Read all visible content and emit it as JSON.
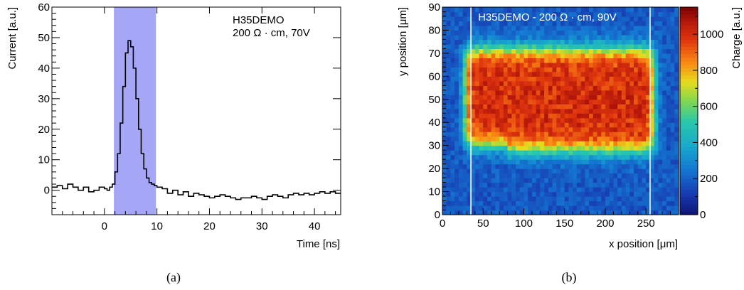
{
  "chart_data": [
    {
      "type": "line",
      "title": "",
      "xlabel": "Time [ns]",
      "ylabel": "Current [a.u.]",
      "xlim": [
        -10,
        45
      ],
      "ylim": [
        -8,
        60
      ],
      "xticks": [
        0,
        10,
        20,
        30,
        40
      ],
      "yticks": [
        0,
        10,
        20,
        30,
        40,
        50,
        60
      ],
      "x_tick_labels": [
        "0",
        "10",
        "20",
        "30",
        "40"
      ],
      "y_tick_labels": [
        "0",
        "10",
        "20",
        "30",
        "40",
        "50",
        "60"
      ],
      "annotations": [
        "H35DEMO",
        "200 Ω · cm, 70V"
      ],
      "shaded_region": {
        "x": [
          1.8,
          9.8
        ],
        "color": "#a6a6f7"
      },
      "line_color": "#000000",
      "series": [
        {
          "x": [
            -10,
            -9,
            -8,
            -7,
            -6,
            -5,
            -4,
            -3,
            -2,
            -1,
            0,
            0.5,
            1,
            1.5,
            2,
            2.5,
            3,
            3.5,
            4,
            4.5,
            5,
            5.5,
            6,
            6.5,
            7,
            7.5,
            8,
            8.5,
            9,
            9.5,
            10,
            11,
            12,
            13,
            14,
            15,
            16,
            17,
            18,
            19,
            20,
            21,
            22,
            23,
            24,
            25,
            26,
            27,
            28,
            29,
            30,
            31,
            32,
            33,
            34,
            35,
            36,
            37,
            38,
            39,
            40,
            41,
            42,
            43,
            44,
            45
          ],
          "values": [
            1,
            1.5,
            0.5,
            2,
            1,
            0,
            1,
            -0.5,
            0,
            1,
            0.5,
            0,
            1,
            2,
            6,
            12,
            22,
            34,
            45,
            49,
            47,
            40,
            30,
            20,
            12,
            7,
            4,
            2.5,
            2,
            1.5,
            1,
            0.5,
            -1,
            0,
            -1.5,
            -0.5,
            -2,
            -1,
            -1.5,
            -2,
            -2.5,
            -2,
            -1.5,
            -2,
            -2.5,
            -3,
            -2.5,
            -2.5,
            -2,
            -2.5,
            -3,
            -2,
            -1.5,
            -2,
            -2.5,
            -1.5,
            -1,
            -1.5,
            -1,
            -1.5,
            -1,
            -0.5,
            -1,
            -0.5,
            -1,
            -1
          ]
        }
      ]
    },
    {
      "type": "heatmap",
      "title": "",
      "xlabel": "x position [μm]",
      "ylabel": "y position [μm]",
      "zlabel": "Charge [a.u.]",
      "xlim": [
        0,
        290
      ],
      "ylim": [
        0,
        90
      ],
      "zlim": [
        0,
        1150
      ],
      "xticks": [
        0,
        50,
        100,
        150,
        200,
        250
      ],
      "yticks": [
        0,
        10,
        20,
        30,
        40,
        50,
        60,
        70,
        80,
        90
      ],
      "zticks": [
        0,
        200,
        400,
        600,
        800,
        1000
      ],
      "x_tick_labels": [
        "0",
        "50",
        "100",
        "150",
        "200",
        "250"
      ],
      "y_tick_labels": [
        "0",
        "10",
        "20",
        "30",
        "40",
        "50",
        "60",
        "70",
        "80",
        "90"
      ],
      "z_tick_labels": [
        "0",
        "200",
        "400",
        "600",
        "800",
        "1000"
      ],
      "annotations": [
        "H35DEMO - 200 Ω · cm, 90V"
      ],
      "vertical_lines_x": [
        35,
        255
      ],
      "bins": {
        "nx": 58,
        "ny": 45
      },
      "high_region": {
        "x": [
          28,
          260
        ],
        "y": [
          28,
          72
        ],
        "value": 1000
      },
      "background_value": 180
    }
  ],
  "captions": {
    "left": "(a)",
    "right": "(b)"
  }
}
